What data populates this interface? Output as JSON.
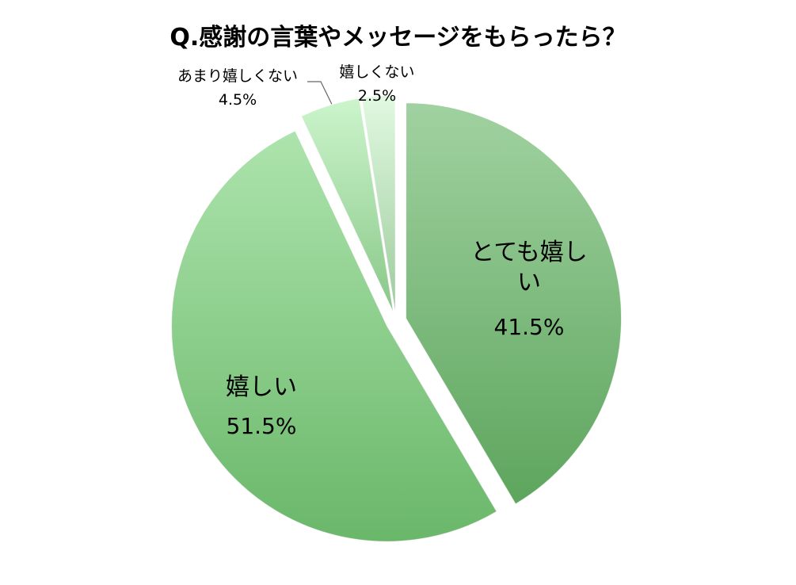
{
  "chart_data": {
    "type": "pie",
    "title": "Q.感謝の言葉やメッセージをもらったら？",
    "categories": [
      "とても嬉しい",
      "嬉しい",
      "あまり嬉しくない",
      "嬉しくない"
    ],
    "values": [
      41.5,
      51.5,
      4.5,
      2.5
    ],
    "value_labels": [
      "41.5%",
      "51.5%",
      "4.5%",
      "2.5%"
    ],
    "colors": [
      "#78be78",
      "#8ad88a",
      "#b6f0b6",
      "#d4f6d4"
    ]
  }
}
